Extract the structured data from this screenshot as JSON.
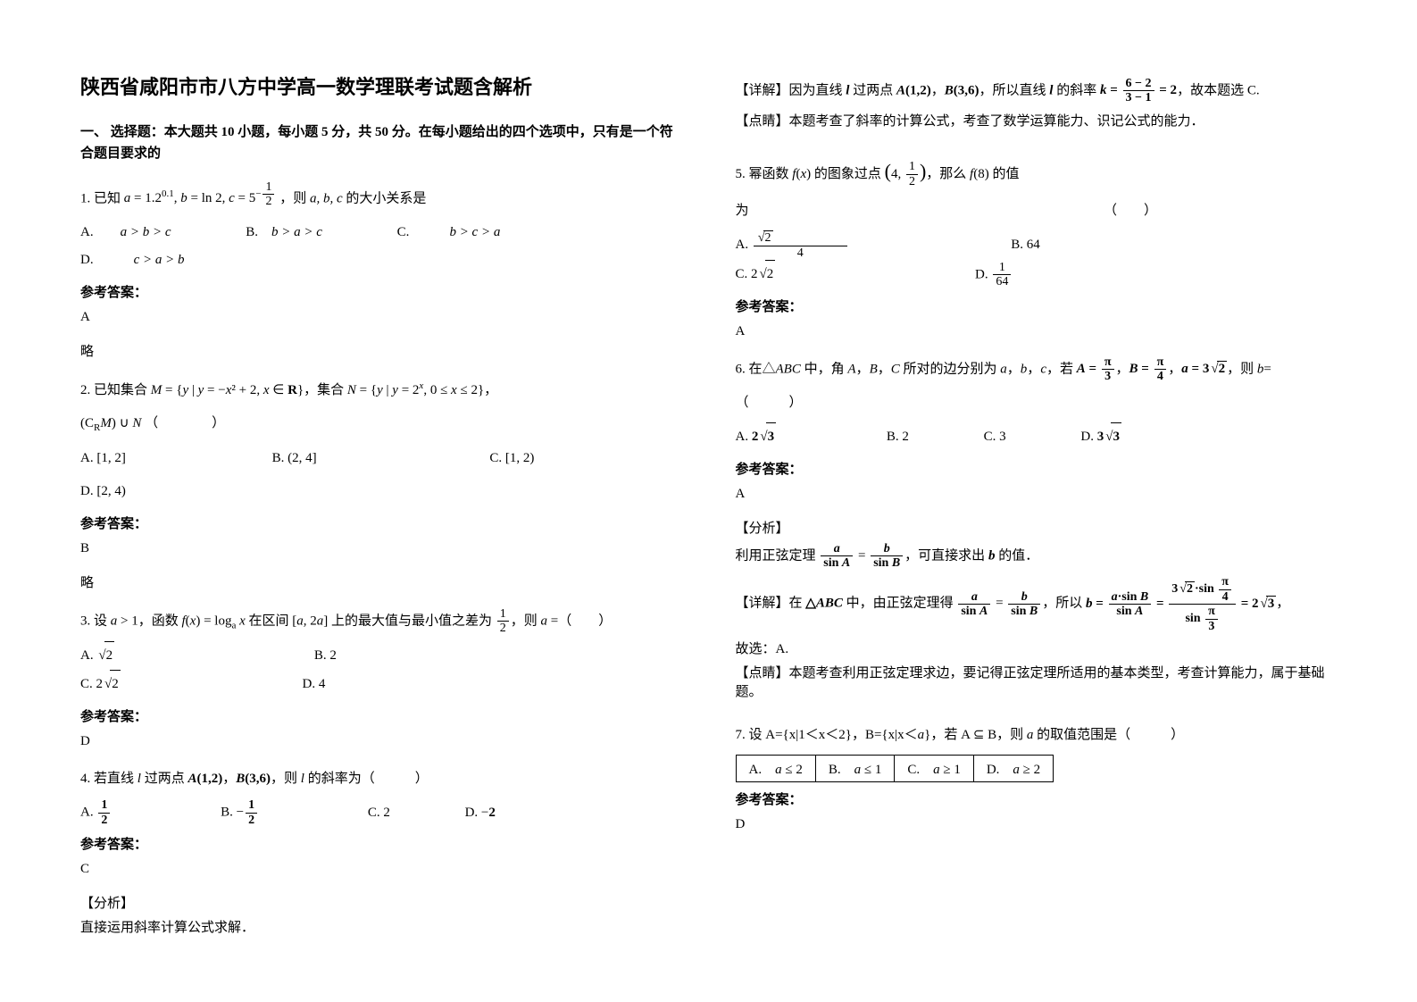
{
  "title": "陕西省咸阳市市八方中学高一数学理联考试题含解析",
  "section1": "一、 选择题：本大题共 10 小题，每小题 5 分，共 50 分。在每小题给出的四个选项中，只有是一个符合题目要求的",
  "q1": {
    "stem_pre": "1. 已知",
    "expr": "a = 1.2<sup>0.1</sup>, b = ln 2, c = 5<sup>-1/2</sup>",
    "stem_post": "，则 a, b, c 的大小关系是",
    "A": "a > b > c",
    "B": "b > a > c",
    "C": "b > c > a",
    "D": "c > a > b",
    "answer_label": "参考答案：",
    "answer": "A",
    "note": "略"
  },
  "q2": {
    "stem": "2. 已知集合 M = {y | y = −x² + 2, x ∈ R}，集合 N = {y | y = 2ˣ, 0 ≤ x ≤ 2}，",
    "line2": "(C_R M) ∪ N （　　　）",
    "A": "[1, 2]",
    "B": "(2, 4]",
    "C": "[1, 2)",
    "D": "[2, 4)",
    "answer_label": "参考答案：",
    "answer": "B",
    "note": "略"
  },
  "q3": {
    "stem": "3. 设 a > 1，函数 f(x) = logₐ x 在区间 [a, 2a] 上的最大值与最小值之差为 1/2，则 a =（　　）",
    "A": "√2",
    "B": "2",
    "C": "2√2",
    "D": "4",
    "answer_label": "参考答案：",
    "answer": "D"
  },
  "q4": {
    "stem": "4. 若直线 l 过两点 A(1,2)，B(3,6)，则 l 的斜率为（　　　）",
    "A": "1/2",
    "B": "−1/2",
    "C": "2",
    "D": "−2",
    "answer_label": "参考答案：",
    "answer": "C",
    "analysis_label": "【分析】",
    "analysis": "直接运用斜率计算公式求解．",
    "detail": "【详解】因为直线 l 过两点 A(1,2)，B(3,6)，所以直线 l 的斜率 k = (6−2)/(3−1) = 2，故本题选 C.",
    "comment": "【点睛】本题考查了斜率的计算公式，考查了数学运算能力、识记公式的能力．"
  },
  "q5": {
    "stem": "5. 幂函数 f(x) 的图象过点 (4, 1/2)，那么 f(8) 的值",
    "stem2": "为　　　　　　　　　　　　　　　　　　　　　　　　　　　（　　）",
    "A": "√2/4",
    "B": "64",
    "C": "2√2",
    "D": "1/64",
    "answer_label": "参考答案：",
    "answer": "A"
  },
  "q6": {
    "stem": "6. 在△ABC 中，角 A，B，C 所对的边分别为 a，b，c，若 A = π/3，B = π/4，a = 3√2，则 b=",
    "line2": "（　　　）",
    "A": "2√3",
    "B": "2",
    "C": "3",
    "D": "3√3",
    "answer_label": "参考答案：",
    "answer": "A",
    "analysis_label": "【分析】",
    "analysis": "利用正弦定理 a/sinA = b/sinB，可直接求出 b 的值．",
    "detail": "【详解】在 △ABC 中，由正弦定理得 a/sinA = b/sinB，所以 b = (a·sinB)/sinA = (3√2·sin(π/4))/sin(π/3) = 2√3，",
    "detail2": "故选：A.",
    "comment": "【点睛】本题考查利用正弦定理求边，要记得正弦定理所适用的基本类型，考查计算能力，属于基础题。"
  },
  "q7": {
    "stem": "7. 设 A={x|1＜x＜2}，B={x|x＜a}，若 A ⊆ B，则 a 的取值范围是（　　　）",
    "A": "a ≤ 2",
    "B": "a ≤ 1",
    "C": "a ≥ 1",
    "D": "a ≥ 2",
    "answer_label": "参考答案：",
    "answer": "D"
  }
}
